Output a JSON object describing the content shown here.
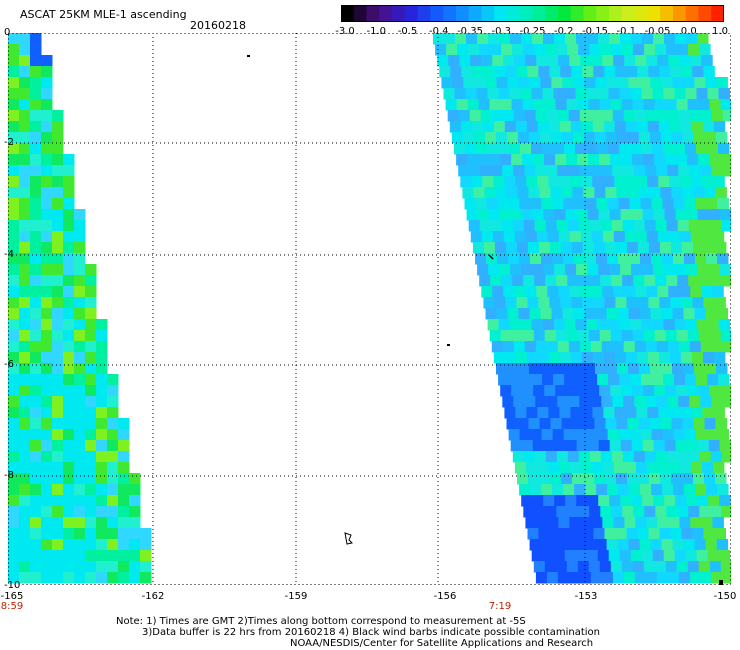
{
  "header": {
    "title": "ASCAT 25KM MLE-1 ascending",
    "date": "20160218"
  },
  "colorbar": {
    "labels": [
      "-3.0",
      "-1.0",
      "-0.5",
      "-0.4",
      "-0.35",
      "-0.3",
      "-0.25",
      "-0.2",
      "-0.15",
      "-0.1",
      "-0.05",
      "0.0",
      "1.0"
    ],
    "colors": [
      "#000000",
      "#4a1080",
      "#2a20d8",
      "#1060ff",
      "#10a0ff",
      "#00e8f0",
      "#00f0b0",
      "#00e840",
      "#70f010",
      "#c8f020",
      "#f0e000",
      "#ff8000",
      "#ff2000"
    ]
  },
  "map": {
    "y_axis_labels": [
      "0",
      "-2",
      "-4",
      "-6",
      "-8",
      "-10"
    ],
    "x_axis_labels": [
      "-165",
      "-162",
      "-159",
      "-156",
      "-153",
      "-150"
    ],
    "time_labels": [
      "8:59",
      "7:19"
    ]
  },
  "notes": {
    "line1": "Note: 1) Times are GMT 2)Times along bottom correspond to measurement at -5S",
    "line2": "3)Data buffer is 22 hrs from 20160218 4) Black wind barbs indicate possible contamination",
    "line3": "NOAA/NESDIS/Center for Satellite Applications and Research"
  }
}
